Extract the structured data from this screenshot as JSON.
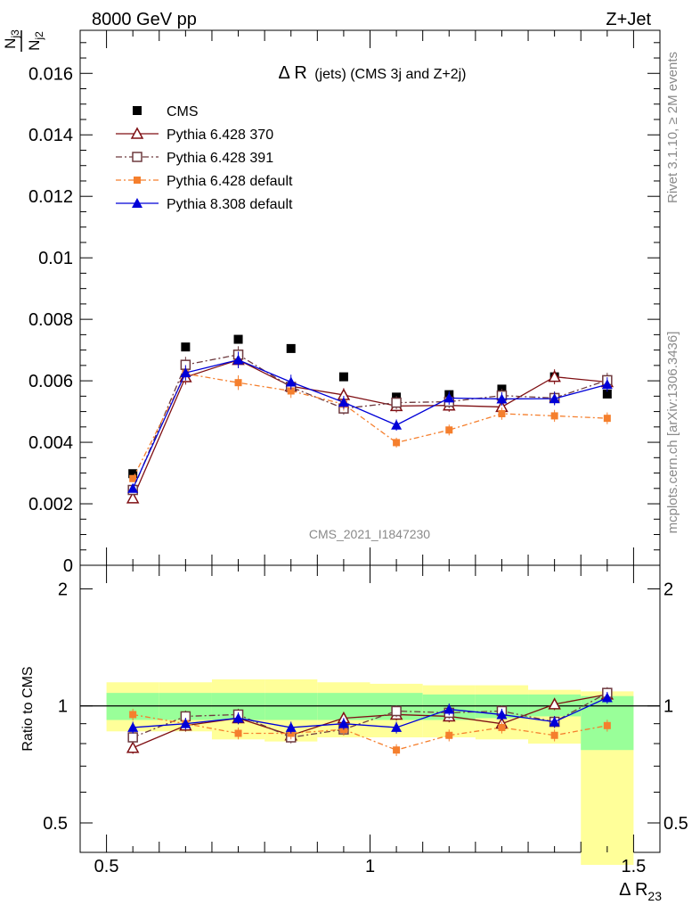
{
  "header": {
    "left": "8000 GeV pp",
    "right": "Z+Jet"
  },
  "side_text": {
    "top": "Rivet 3.1.10, ≥ 2M events",
    "bottom": "mcplots.cern.ch [arXiv:1306.3436]"
  },
  "watermark": "CMS_2021_I1847230",
  "colors": {
    "cms": "#000000",
    "py370": "#7f0f13",
    "py391": "#6e3a3f",
    "py6def": "#f57f2d",
    "py8def": "#0000d8",
    "band_green": "#99ff99",
    "band_yellow": "#ffff99"
  },
  "chart_data": [
    {
      "type": "scatter",
      "title_main": "Δ R",
      "title_sub": "(jets) (CMS 3j and Z+2j)",
      "ylabel": "N_j3 / N_j2",
      "ylim": [
        0,
        0.0174
      ],
      "yticks": [
        "0",
        "0.002",
        "0.004",
        "0.006",
        "0.008",
        "0.01",
        "0.012",
        "0.014",
        "0.016"
      ],
      "legend_position": "top-left",
      "x": [
        0.55,
        0.65,
        0.75,
        0.85,
        0.95,
        1.05,
        1.15,
        1.25,
        1.35,
        1.45
      ],
      "series": [
        {
          "name": "CMS",
          "key": "cms",
          "values": [
            0.00298,
            0.0071,
            0.00735,
            0.00705,
            0.00613,
            0.00547,
            0.00555,
            0.00573,
            0.00613,
            0.00557
          ]
        },
        {
          "name": "Pythia 6.428 370",
          "key": "py370",
          "values": [
            0.00218,
            0.00612,
            0.00668,
            0.00582,
            0.00554,
            0.00518,
            0.0052,
            0.00515,
            0.00613,
            0.00596
          ]
        },
        {
          "name": "Pythia 6.428 391",
          "key": "py391",
          "values": [
            0.00245,
            0.00652,
            0.00685,
            0.0058,
            0.0051,
            0.00529,
            0.00532,
            0.00552,
            0.00544,
            0.00602
          ]
        },
        {
          "name": "Pythia 6.428 default",
          "key": "py6def",
          "values": [
            0.00282,
            0.00623,
            0.00594,
            0.00567,
            0.00524,
            0.00399,
            0.0044,
            0.00493,
            0.00486,
            0.00478
          ]
        },
        {
          "name": "Pythia 8.308 default",
          "key": "py8def",
          "values": [
            0.0025,
            0.00626,
            0.00668,
            0.00596,
            0.0053,
            0.00456,
            0.00544,
            0.00541,
            0.00542,
            0.00588
          ]
        }
      ]
    },
    {
      "type": "scatter",
      "ylabel": "Ratio to CMS",
      "xlabel": "Δ R23",
      "xlim": [
        0.45,
        1.55
      ],
      "ylim": [
        0.42,
        2.3
      ],
      "xticks": [
        "0.5",
        "1",
        "1.5"
      ],
      "yticks": [
        "0.5",
        "1",
        "2"
      ],
      "x": [
        0.55,
        0.65,
        0.75,
        0.85,
        0.95,
        1.05,
        1.15,
        1.25,
        1.35,
        1.45
      ],
      "band_green": [
        [
          0.92,
          1.08
        ],
        [
          0.92,
          1.08
        ],
        [
          0.92,
          1.08
        ],
        [
          0.92,
          1.08
        ],
        [
          0.92,
          1.08
        ],
        [
          0.92,
          1.08
        ],
        [
          0.92,
          1.07
        ],
        [
          0.93,
          1.07
        ],
        [
          0.94,
          1.07
        ],
        [
          0.77,
          1.06
        ]
      ],
      "band_yellow": [
        [
          0.86,
          1.15
        ],
        [
          0.86,
          1.15
        ],
        [
          0.82,
          1.17
        ],
        [
          0.81,
          1.17
        ],
        [
          0.83,
          1.15
        ],
        [
          0.83,
          1.14
        ],
        [
          0.83,
          1.13
        ],
        [
          0.82,
          1.13
        ],
        [
          0.8,
          1.1
        ],
        [
          0.39,
          1.09
        ]
      ],
      "series": [
        {
          "name": "Pythia 6.428 370",
          "key": "py370",
          "values": [
            0.78,
            0.89,
            0.93,
            0.84,
            0.93,
            0.95,
            0.94,
            0.9,
            1.01,
            1.07
          ]
        },
        {
          "name": "Pythia 6.428 391",
          "key": "py391",
          "values": [
            0.83,
            0.94,
            0.95,
            0.83,
            0.87,
            0.97,
            0.96,
            0.97,
            0.91,
            1.08
          ]
        },
        {
          "name": "Pythia 6.428 default",
          "key": "py6def",
          "values": [
            0.95,
            0.9,
            0.85,
            0.85,
            0.87,
            0.77,
            0.84,
            0.88,
            0.84,
            0.89
          ]
        },
        {
          "name": "Pythia 8.308 default",
          "key": "py8def",
          "values": [
            0.88,
            0.9,
            0.93,
            0.88,
            0.9,
            0.88,
            0.98,
            0.95,
            0.91,
            1.05
          ]
        }
      ]
    }
  ]
}
